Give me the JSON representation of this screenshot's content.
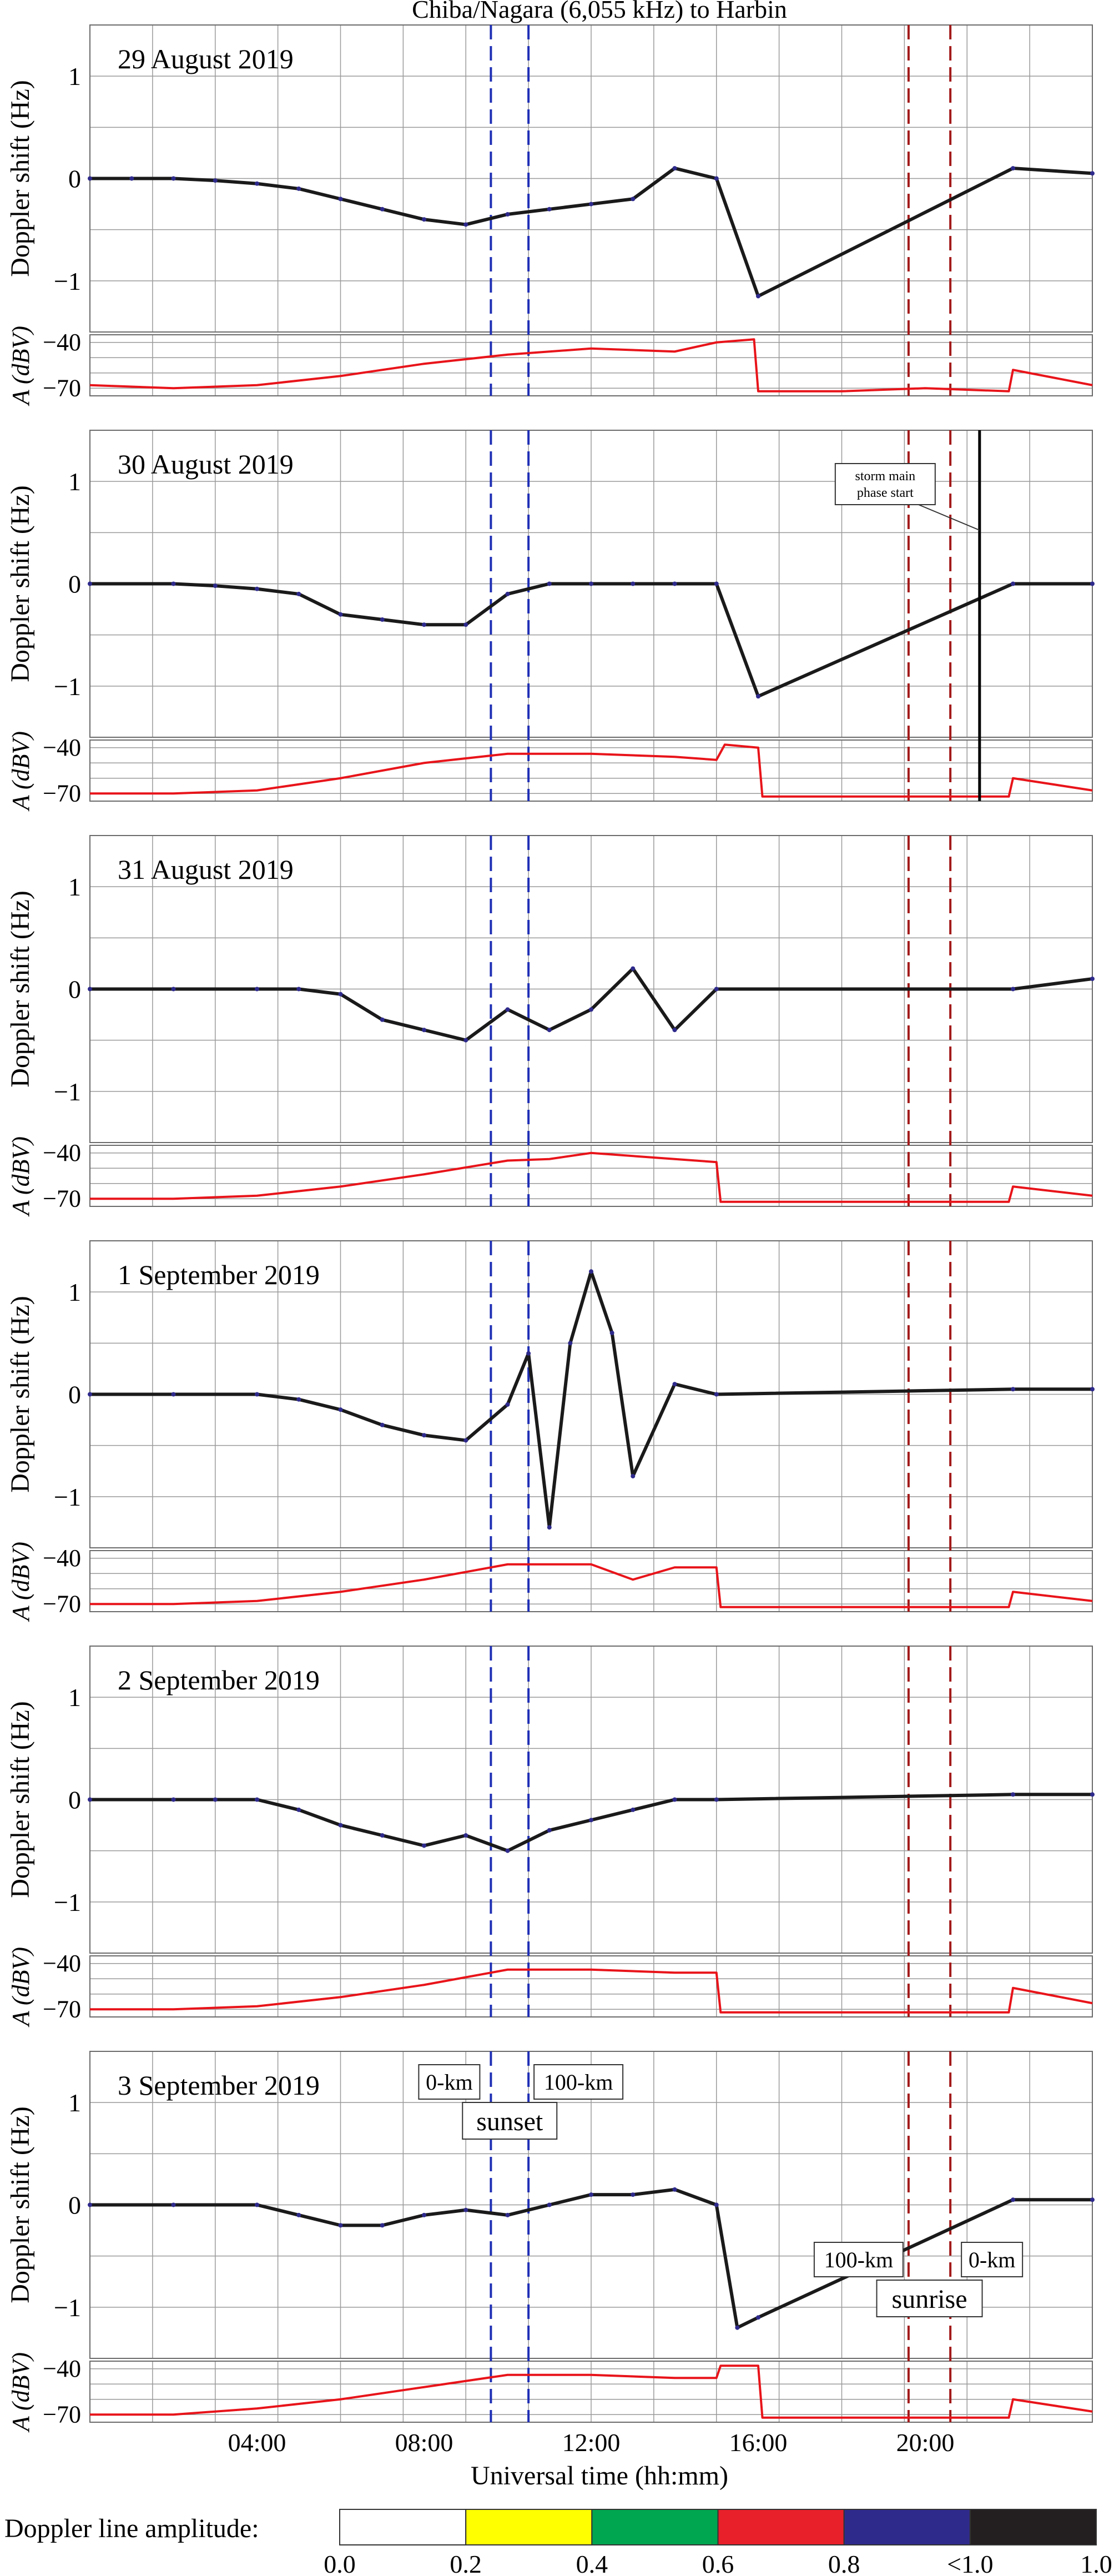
{
  "figure": {
    "title": "Chiba/Nagara (6,055 kHz) to Harbin",
    "xlabel": "Universal time (hh:mm)",
    "x_ticks": [
      "04:00",
      "08:00",
      "12:00",
      "16:00",
      "20:00"
    ],
    "doppler_ylabel": "Doppler shift (Hz)",
    "amp_ylabel": "A (dBV)",
    "doppler_ticks": [
      "1",
      "0",
      "−1"
    ],
    "amp_ticks": [
      "−40",
      "−70"
    ],
    "legend_label": "Doppler line amplitude:",
    "legend_ticks": [
      "0.0",
      "0.2",
      "0.4",
      "0.6",
      "0.8",
      "<1.0",
      "1.0"
    ],
    "legend_colors": [
      "#ffffff",
      "#ffff00",
      "#00a650",
      "#e8202a",
      "#2e2a8c",
      "#231f20"
    ],
    "annotations": {
      "storm": "storm main phase start",
      "km0_left": "0-km",
      "km100_left": "100-km",
      "sunset": "sunset",
      "km100_right": "100-km",
      "km0_right": "0-km",
      "sunrise": "sunrise"
    },
    "colors": {
      "sunset_line": "#1f2fb5",
      "sunrise_line": "#a31a1a",
      "amplitude": "#e8141a",
      "storm_line": "#000000"
    }
  },
  "chart_data": {
    "type": "line",
    "x_unit": "UT hours",
    "xlim": [
      0,
      24
    ],
    "doppler_ylim": [
      -1.5,
      1.5
    ],
    "amplitude_ylim": [
      -75,
      -35
    ],
    "sunset_times": [
      9.6,
      10.5
    ],
    "sunrise_times": [
      19.6,
      20.6
    ],
    "storm_main_phase_start": {
      "panel": "30 August 2019",
      "time": 21.3
    },
    "panels": [
      {
        "date": "29 August 2019",
        "doppler_shift": [
          [
            0,
            0.0
          ],
          [
            1,
            0.0
          ],
          [
            2,
            0.0
          ],
          [
            3,
            -0.02
          ],
          [
            4,
            -0.05
          ],
          [
            5,
            -0.1
          ],
          [
            6,
            -0.2
          ],
          [
            7,
            -0.3
          ],
          [
            8,
            -0.4
          ],
          [
            9,
            -0.45
          ],
          [
            10,
            -0.35
          ],
          [
            11,
            -0.3
          ],
          [
            12,
            -0.25
          ],
          [
            13,
            -0.2
          ],
          [
            14,
            0.1
          ],
          [
            15,
            0.0
          ],
          [
            16,
            -1.15
          ],
          [
            22.1,
            0.1
          ],
          [
            24,
            0.05
          ]
        ],
        "amplitude": [
          [
            0,
            -68
          ],
          [
            2,
            -70
          ],
          [
            4,
            -68
          ],
          [
            6,
            -62
          ],
          [
            8,
            -54
          ],
          [
            10,
            -48
          ],
          [
            12,
            -44
          ],
          [
            14,
            -46
          ],
          [
            15,
            -40
          ],
          [
            15.9,
            -38
          ],
          [
            16,
            -72
          ],
          [
            18,
            -72
          ],
          [
            20,
            -70
          ],
          [
            22,
            -72
          ],
          [
            22.1,
            -58
          ],
          [
            24,
            -68
          ]
        ]
      },
      {
        "date": "30 August 2019",
        "doppler_shift": [
          [
            0,
            0.0
          ],
          [
            2,
            0.0
          ],
          [
            3,
            -0.02
          ],
          [
            4,
            -0.05
          ],
          [
            5,
            -0.1
          ],
          [
            6,
            -0.3
          ],
          [
            7,
            -0.35
          ],
          [
            8,
            -0.4
          ],
          [
            9,
            -0.4
          ],
          [
            10,
            -0.1
          ],
          [
            11,
            0.0
          ],
          [
            12,
            0.0
          ],
          [
            13,
            0.0
          ],
          [
            14,
            0.0
          ],
          [
            15,
            0.0
          ],
          [
            16,
            -1.1
          ],
          [
            22.1,
            0.0
          ],
          [
            24,
            0.0
          ]
        ],
        "amplitude": [
          [
            0,
            -70
          ],
          [
            2,
            -70
          ],
          [
            4,
            -68
          ],
          [
            6,
            -60
          ],
          [
            8,
            -50
          ],
          [
            10,
            -44
          ],
          [
            12,
            -44
          ],
          [
            14,
            -46
          ],
          [
            15,
            -48
          ],
          [
            15.2,
            -38
          ],
          [
            16,
            -40
          ],
          [
            16.1,
            -72
          ],
          [
            20,
            -72
          ],
          [
            22,
            -72
          ],
          [
            22.1,
            -60
          ],
          [
            24,
            -68
          ]
        ]
      },
      {
        "date": "31 August 2019",
        "doppler_shift": [
          [
            0,
            0.0
          ],
          [
            2,
            0.0
          ],
          [
            4,
            0.0
          ],
          [
            5,
            0.0
          ],
          [
            6,
            -0.05
          ],
          [
            7,
            -0.3
          ],
          [
            8,
            -0.4
          ],
          [
            9,
            -0.5
          ],
          [
            10,
            -0.2
          ],
          [
            11,
            -0.4
          ],
          [
            12,
            -0.2
          ],
          [
            13,
            0.2
          ],
          [
            14,
            -0.4
          ],
          [
            15,
            0.0
          ],
          [
            22.1,
            0.0
          ],
          [
            24,
            0.1
          ]
        ],
        "amplitude": [
          [
            0,
            -70
          ],
          [
            2,
            -70
          ],
          [
            4,
            -68
          ],
          [
            6,
            -62
          ],
          [
            8,
            -54
          ],
          [
            10,
            -45
          ],
          [
            11,
            -44
          ],
          [
            12,
            -40
          ],
          [
            14,
            -44
          ],
          [
            15,
            -46
          ],
          [
            15.1,
            -72
          ],
          [
            20,
            -72
          ],
          [
            22,
            -72
          ],
          [
            22.1,
            -62
          ],
          [
            24,
            -68
          ]
        ]
      },
      {
        "date": "1 September 2019",
        "doppler_shift": [
          [
            0,
            0.0
          ],
          [
            2,
            0.0
          ],
          [
            4,
            0.0
          ],
          [
            5,
            -0.05
          ],
          [
            6,
            -0.15
          ],
          [
            7,
            -0.3
          ],
          [
            8,
            -0.4
          ],
          [
            9,
            -0.45
          ],
          [
            10,
            -0.1
          ],
          [
            10.5,
            0.4
          ],
          [
            11,
            -1.3
          ],
          [
            11.5,
            0.5
          ],
          [
            12,
            1.2
          ],
          [
            12.5,
            0.6
          ],
          [
            13,
            -0.8
          ],
          [
            14,
            0.1
          ],
          [
            15,
            0.0
          ],
          [
            22.1,
            0.05
          ],
          [
            24,
            0.05
          ]
        ],
        "amplitude": [
          [
            0,
            -70
          ],
          [
            2,
            -70
          ],
          [
            4,
            -68
          ],
          [
            6,
            -62
          ],
          [
            8,
            -54
          ],
          [
            10,
            -44
          ],
          [
            12,
            -44
          ],
          [
            13,
            -54
          ],
          [
            14,
            -46
          ],
          [
            15,
            -46
          ],
          [
            15.1,
            -72
          ],
          [
            16,
            -72
          ],
          [
            20,
            -72
          ],
          [
            22,
            -72
          ],
          [
            22.1,
            -62
          ],
          [
            24,
            -68
          ]
        ]
      },
      {
        "date": "2 September 2019",
        "doppler_shift": [
          [
            0,
            0.0
          ],
          [
            2,
            0.0
          ],
          [
            3,
            0.0
          ],
          [
            4,
            0.0
          ],
          [
            5,
            -0.1
          ],
          [
            6,
            -0.25
          ],
          [
            7,
            -0.35
          ],
          [
            8,
            -0.45
          ],
          [
            9,
            -0.35
          ],
          [
            10,
            -0.5
          ],
          [
            11,
            -0.3
          ],
          [
            12,
            -0.2
          ],
          [
            13,
            -0.1
          ],
          [
            14,
            0.0
          ],
          [
            15,
            0.0
          ],
          [
            22.1,
            0.05
          ],
          [
            24,
            0.05
          ]
        ],
        "amplitude": [
          [
            0,
            -70
          ],
          [
            2,
            -70
          ],
          [
            4,
            -68
          ],
          [
            6,
            -62
          ],
          [
            8,
            -54
          ],
          [
            10,
            -44
          ],
          [
            12,
            -44
          ],
          [
            14,
            -46
          ],
          [
            15,
            -46
          ],
          [
            15.1,
            -72
          ],
          [
            20,
            -72
          ],
          [
            22,
            -72
          ],
          [
            22.1,
            -56
          ],
          [
            24,
            -66
          ]
        ]
      },
      {
        "date": "3 September 2019",
        "doppler_shift": [
          [
            0,
            0.0
          ],
          [
            2,
            0.0
          ],
          [
            4,
            0.0
          ],
          [
            5,
            -0.1
          ],
          [
            6,
            -0.2
          ],
          [
            7,
            -0.2
          ],
          [
            8,
            -0.1
          ],
          [
            9,
            -0.05
          ],
          [
            10,
            -0.1
          ],
          [
            11,
            0.0
          ],
          [
            12,
            0.1
          ],
          [
            13,
            0.1
          ],
          [
            14,
            0.15
          ],
          [
            15,
            0.0
          ],
          [
            15.5,
            -1.2
          ],
          [
            16,
            -1.1
          ],
          [
            22.1,
            0.05
          ],
          [
            24,
            0.05
          ]
        ],
        "amplitude": [
          [
            0,
            -70
          ],
          [
            2,
            -70
          ],
          [
            4,
            -66
          ],
          [
            6,
            -60
          ],
          [
            8,
            -52
          ],
          [
            10,
            -44
          ],
          [
            12,
            -44
          ],
          [
            14,
            -46
          ],
          [
            15,
            -46
          ],
          [
            15.1,
            -38
          ],
          [
            16,
            -38
          ],
          [
            16.1,
            -72
          ],
          [
            20,
            -72
          ],
          [
            22,
            -72
          ],
          [
            22.1,
            -60
          ],
          [
            24,
            -68
          ]
        ]
      }
    ]
  }
}
